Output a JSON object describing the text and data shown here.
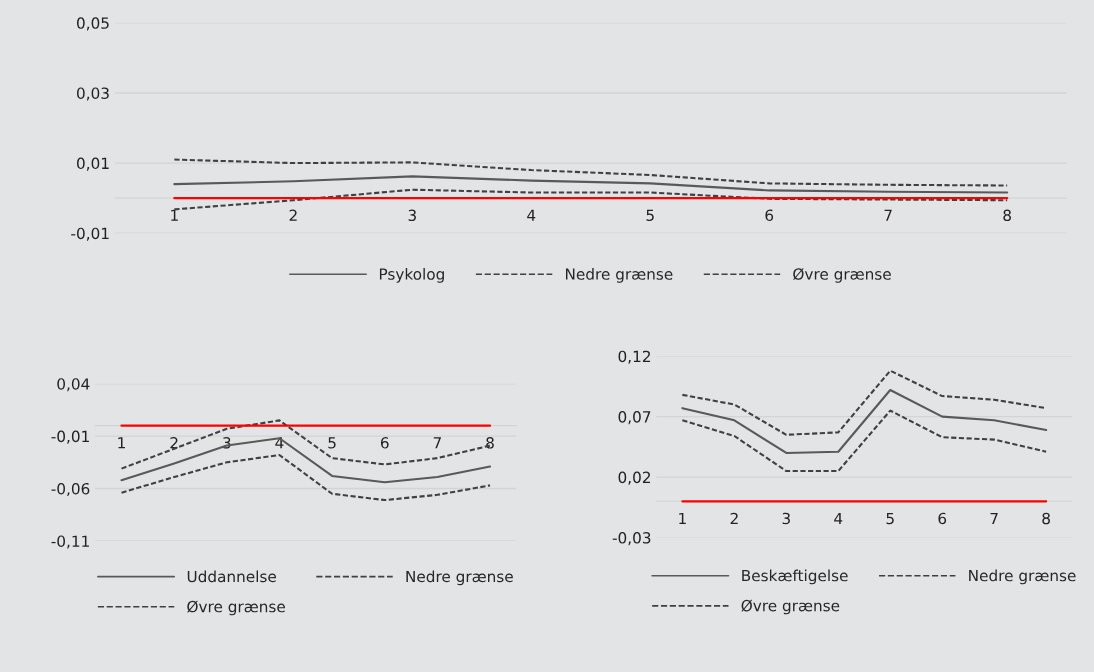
{
  "chart_data": [
    {
      "type": "line",
      "categories": [
        "1",
        "2",
        "3",
        "4",
        "5",
        "6",
        "7",
        "8"
      ],
      "series": [
        {
          "name": "Psykolog",
          "color": "#595959",
          "line_style": "solid",
          "values": [
            0.004,
            0.0048,
            0.0062,
            0.005,
            0.0042,
            0.0022,
            0.0018,
            0.0016
          ]
        },
        {
          "name": "Nedre grænse",
          "color": "#404040",
          "line_style": "dashed",
          "values": [
            -0.0032,
            -0.0006,
            0.0024,
            0.0016,
            0.0016,
            -0.0002,
            -0.0004,
            -0.0006
          ]
        },
        {
          "name": "Øvre grænse",
          "color": "#404040",
          "line_style": "dashed",
          "values": [
            0.011,
            0.01,
            0.0102,
            0.008,
            0.0066,
            0.0042,
            0.0038,
            0.0036
          ]
        }
      ],
      "ylim": [
        -0.01,
        0.05
      ],
      "yticks": [
        {
          "value": -0.01,
          "label": "-0,01"
        },
        {
          "value": 0.01,
          "label": "0,01"
        },
        {
          "value": 0.03,
          "label": "0,03"
        },
        {
          "value": 0.05,
          "label": "0,05"
        }
      ],
      "ref_lines": [
        {
          "axis": "y",
          "value": 0,
          "color": "#ff0000"
        }
      ],
      "grid": "y",
      "legend": "bottom"
    },
    {
      "type": "line",
      "categories": [
        "1",
        "2",
        "3",
        "4",
        "5",
        "6",
        "7",
        "8"
      ],
      "series": [
        {
          "name": "Uddannelse",
          "color": "#595959",
          "line_style": "solid",
          "values": [
            -0.052,
            -0.036,
            -0.019,
            -0.012,
            -0.048,
            -0.054,
            -0.049,
            -0.039
          ]
        },
        {
          "name": "Nedre grænse",
          "color": "#404040",
          "line_style": "dashed",
          "values": [
            -0.064,
            -0.049,
            -0.035,
            -0.028,
            -0.065,
            -0.071,
            -0.066,
            -0.057
          ]
        },
        {
          "name": "Øvre grænse",
          "color": "#404040",
          "line_style": "dashed",
          "values": [
            -0.041,
            -0.022,
            -0.003,
            0.005,
            -0.031,
            -0.037,
            -0.031,
            -0.019
          ]
        }
      ],
      "ylim": [
        -0.11,
        0.04
      ],
      "yticks": [
        {
          "value": -0.11,
          "label": "-0,11"
        },
        {
          "value": -0.06,
          "label": "-0,06"
        },
        {
          "value": -0.01,
          "label": "-0,01"
        },
        {
          "value": 0.04,
          "label": "0,04"
        }
      ],
      "ref_lines": [
        {
          "axis": "y",
          "value": 0,
          "color": "#ff0000"
        }
      ],
      "grid": "y",
      "legend": "bottom"
    },
    {
      "type": "line",
      "categories": [
        "1",
        "2",
        "3",
        "4",
        "5",
        "6",
        "7",
        "8"
      ],
      "series": [
        {
          "name": "Beskæftigelse",
          "color": "#595959",
          "line_style": "solid",
          "values": [
            0.077,
            0.067,
            0.04,
            0.041,
            0.092,
            0.07,
            0.067,
            0.059
          ]
        },
        {
          "name": "Nedre grænse",
          "color": "#404040",
          "line_style": "dashed",
          "values": [
            0.067,
            0.054,
            0.025,
            0.025,
            0.075,
            0.053,
            0.051,
            0.041
          ]
        },
        {
          "name": "Øvre grænse",
          "color": "#404040",
          "line_style": "dashed",
          "values": [
            0.088,
            0.08,
            0.055,
            0.057,
            0.108,
            0.087,
            0.084,
            0.077
          ]
        }
      ],
      "ylim": [
        -0.03,
        0.12
      ],
      "yticks": [
        {
          "value": -0.03,
          "label": "-0,03"
        },
        {
          "value": 0.02,
          "label": "0,02"
        },
        {
          "value": 0.07,
          "label": "0,07"
        },
        {
          "value": 0.12,
          "label": "0,12"
        }
      ],
      "ref_lines": [
        {
          "axis": "y",
          "value": 0,
          "color": "#ff0000"
        }
      ],
      "grid": "y",
      "legend": "bottom"
    }
  ]
}
